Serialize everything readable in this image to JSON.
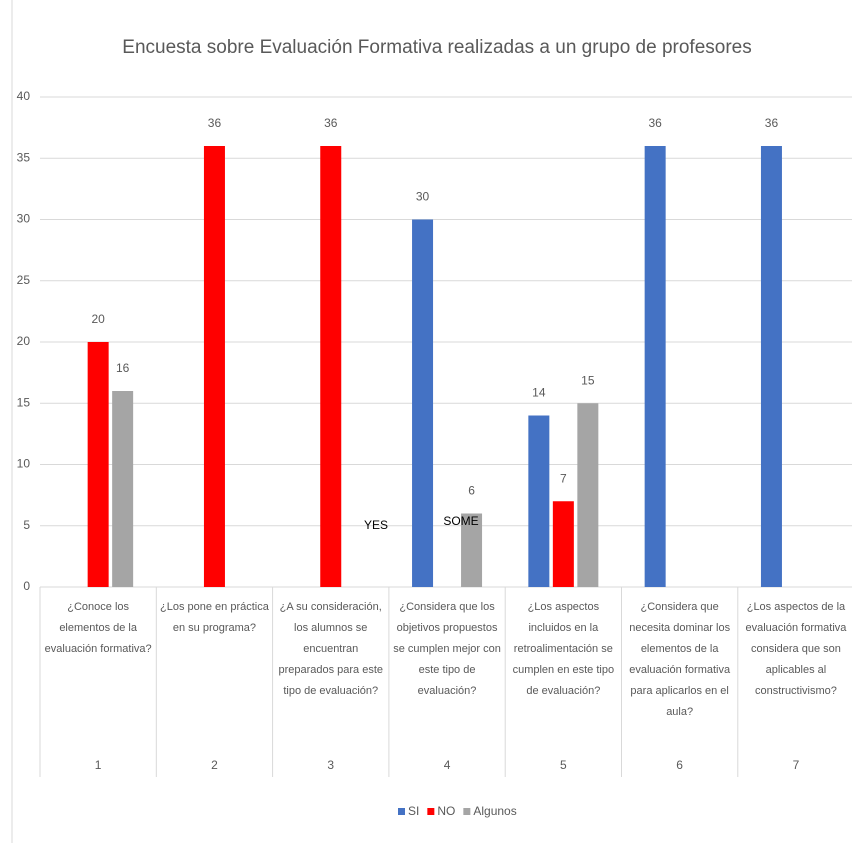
{
  "chart_data": {
    "type": "bar",
    "title": "Encuesta sobre Evaluación Formativa realizadas a un grupo de profesores",
    "categories": [
      "¿Conoce los elementos de la evaluación formativa?",
      "¿Los pone en práctica en su programa?",
      "¿A su consideración, los alumnos se encuentran preparados para este tipo de evaluación?",
      "¿Considera que los objetivos propuestos se cumplen mejor con este tipo de evaluación?",
      "¿Los aspectos incluidos en la retroalimentación se cumplen en este tipo de evaluación?",
      "¿Considera que necesita dominar los elementos de la evaluación formativa para aplicarlos en el aula?",
      "¿Los aspectos de la evaluación formativa considera que son aplicables al constructivismo?"
    ],
    "category_groups": [
      "1",
      "2",
      "3",
      "4",
      "5",
      "6",
      "7"
    ],
    "series": [
      {
        "name": "SI",
        "color": "#4472c4",
        "values": [
          null,
          null,
          null,
          30,
          14,
          36,
          36
        ]
      },
      {
        "name": "NO",
        "color": "#ff0000",
        "values": [
          20,
          36,
          36,
          null,
          7,
          null,
          null
        ]
      },
      {
        "name": "Algunos",
        "color": "#a5a5a5",
        "values": [
          16,
          null,
          null,
          6,
          15,
          null,
          null
        ]
      }
    ],
    "annotations": [
      "YES",
      "SOME"
    ],
    "ylim": [
      0,
      40
    ],
    "yticks": [
      0,
      5,
      10,
      15,
      20,
      25,
      30,
      35,
      40
    ],
    "grid": true,
    "legend": "bottom"
  }
}
